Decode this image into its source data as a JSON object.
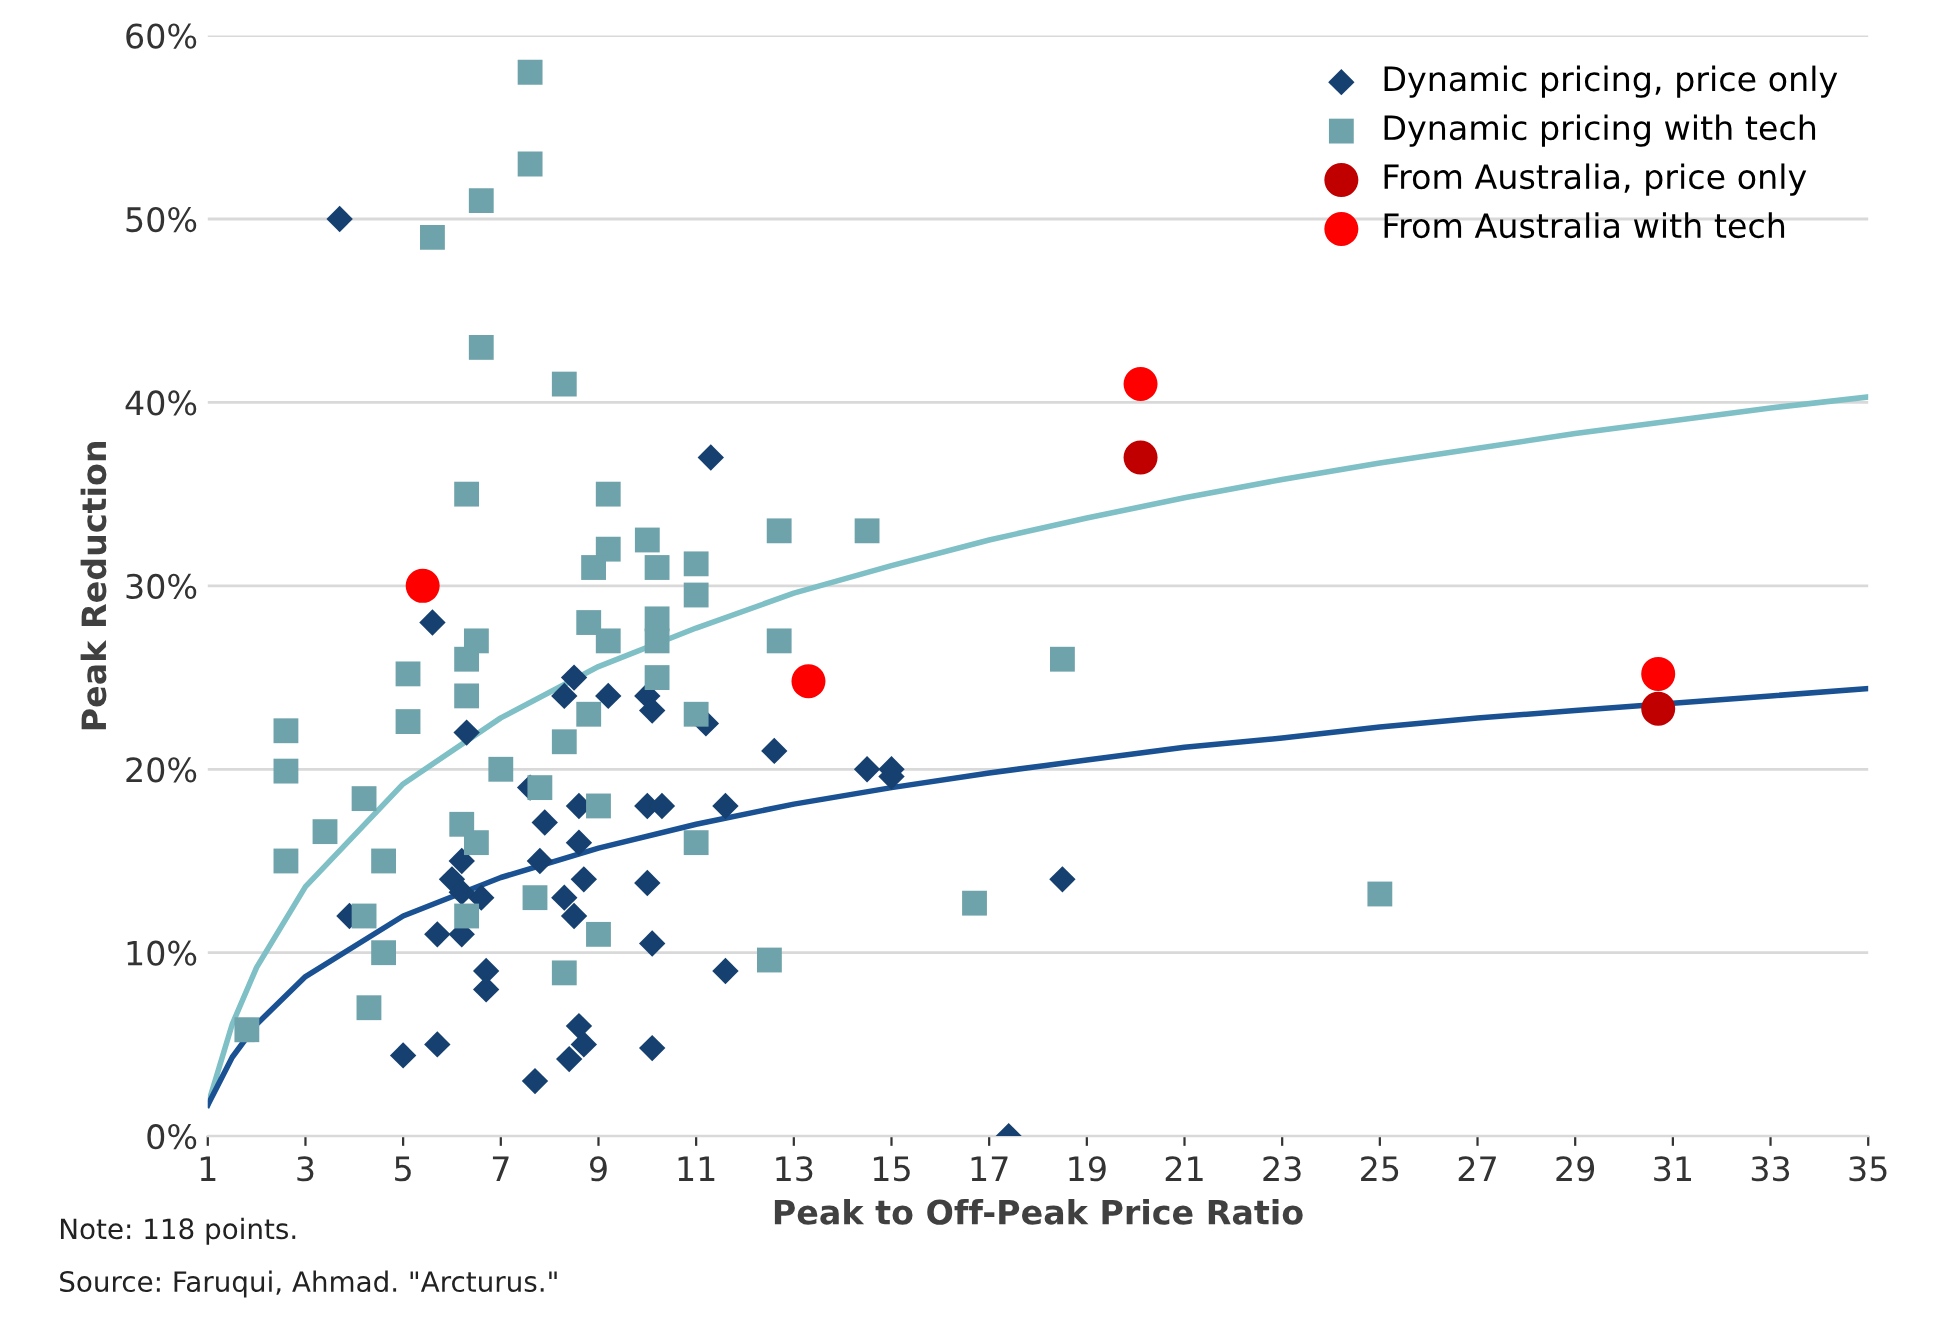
{
  "chart_data": {
    "type": "scatter",
    "xlabel": "Peak to Off-Peak Price Ratio",
    "ylabel": "Peak Reduction",
    "xlim": [
      1,
      35
    ],
    "xticks": [
      1,
      3,
      5,
      7,
      9,
      11,
      13,
      15,
      17,
      19,
      21,
      23,
      25,
      27,
      29,
      31,
      33,
      35
    ],
    "ylim": [
      0,
      60
    ],
    "yticks": [
      {
        "value": 0,
        "label": "0%"
      },
      {
        "value": 10,
        "label": "10%"
      },
      {
        "value": 20,
        "label": "20%"
      },
      {
        "value": 30,
        "label": "30%"
      },
      {
        "value": 40,
        "label": "40%"
      },
      {
        "value": 50,
        "label": "50%"
      },
      {
        "value": 60,
        "label": "60%"
      }
    ],
    "grid": "y",
    "legend": "top right",
    "annotations": [
      "Note: 118 points.",
      "Source: Faruqui, Ahmad. \"Arcturus.\""
    ],
    "series": [
      {
        "name": "Dynamic pricing, price only",
        "marker": "diamond",
        "color": "#16406f",
        "x": [
          3.7,
          11.3,
          5.6,
          6.3,
          8.3,
          8.5,
          9.2,
          10,
          10.1,
          11.2,
          12.6,
          14.5,
          15,
          15,
          7.6,
          7.9,
          8.6,
          10,
          10.3,
          11.6,
          6.2,
          6.0,
          7.8,
          6.6,
          6.2,
          8.6,
          8.7,
          10,
          18.5,
          8.3,
          8.5,
          5.7,
          6.2,
          6.7,
          6.7,
          10.1,
          11.6,
          3.9,
          5,
          5.7,
          7.7,
          8.6,
          8.7,
          8.4,
          10.1,
          17.4
        ],
        "values": [
          50,
          37,
          28,
          22,
          24,
          25,
          24,
          24,
          23.2,
          22.5,
          21,
          20,
          20,
          19.6,
          19,
          17.1,
          18,
          18,
          18,
          18,
          15,
          14,
          15,
          13,
          13.3,
          16,
          14,
          13.8,
          14,
          13,
          12,
          11,
          11,
          9,
          8,
          10.5,
          9,
          12,
          4.4,
          5,
          3,
          6,
          5,
          4.2,
          4.8,
          0
        ]
      },
      {
        "name": "Dynamic pricing with tech",
        "marker": "square",
        "color": "#6fa3ab",
        "x": [
          7.6,
          7.6,
          6.6,
          5.6,
          6.6,
          8.3,
          6.3,
          9.2,
          12.7,
          9.2,
          8.9,
          10,
          10.2,
          11,
          11,
          10.2,
          14.5,
          8.8,
          9.2,
          10.2,
          6.5,
          6.3,
          5.1,
          5.1,
          6.3,
          10.2,
          11,
          8.8,
          8.3,
          12.7,
          2.6,
          2.6,
          7,
          7.8,
          4.2,
          3.4,
          2.6,
          4.6,
          6.2,
          6.5,
          9,
          11,
          7.7,
          6.3,
          4.2,
          4.6,
          9,
          8.3,
          12.5,
          4.3,
          1.8,
          18.5,
          16.7,
          25
        ],
        "values": [
          58,
          53,
          51,
          49,
          43,
          41,
          35,
          35,
          33,
          32,
          31,
          32.5,
          31,
          31.2,
          29.5,
          28.2,
          33,
          28,
          27,
          27,
          27,
          26,
          25.2,
          22.6,
          24,
          25,
          23,
          23,
          21.5,
          27,
          22.1,
          19.9,
          20,
          19,
          18.4,
          16.6,
          15,
          15,
          17,
          16,
          18,
          16,
          13,
          12,
          12,
          10,
          11,
          8.9,
          9.6,
          7,
          5.8,
          26,
          12.7,
          13.2
        ]
      },
      {
        "name": "From Australia, price only",
        "marker": "circle",
        "color": "#c00000",
        "x": [
          20.1,
          30.7
        ],
        "values": [
          37,
          23.3
        ]
      },
      {
        "name": "From Australia with tech",
        "marker": "circle",
        "color": "#ff0000",
        "x": [
          20.1,
          30.7,
          5.4,
          13.3
        ],
        "values": [
          41,
          25.2,
          30,
          24.8
        ]
      },
      {
        "type": "line",
        "marker": "none",
        "line_style": "solid",
        "color": "#7fbfc6",
        "x": [
          1,
          1.5,
          2,
          3,
          5,
          7,
          9,
          11,
          13,
          15,
          17,
          19,
          21,
          23,
          25,
          27,
          29,
          31,
          33,
          35
        ],
        "values": [
          1.7,
          6.1,
          9.2,
          13.6,
          19.2,
          22.8,
          25.6,
          27.7,
          29.6,
          31.1,
          32.5,
          33.7,
          34.8,
          35.8,
          36.7,
          37.5,
          38.3,
          39.0,
          39.7,
          40.3
        ]
      },
      {
        "type": "line",
        "marker": "none",
        "line_style": "solid",
        "color": "#1a5192",
        "x": [
          1,
          1.5,
          2,
          3,
          5,
          7,
          9,
          11,
          13,
          15,
          17,
          19,
          21,
          23,
          25,
          27,
          29,
          31,
          33,
          35
        ],
        "values": [
          1.7,
          4.3,
          6.1,
          8.7,
          12.0,
          14.1,
          15.7,
          17.0,
          18.1,
          19.0,
          19.8,
          20.5,
          21.2,
          21.7,
          22.3,
          22.8,
          23.2,
          23.6,
          24.0,
          24.4
        ]
      }
    ]
  }
}
